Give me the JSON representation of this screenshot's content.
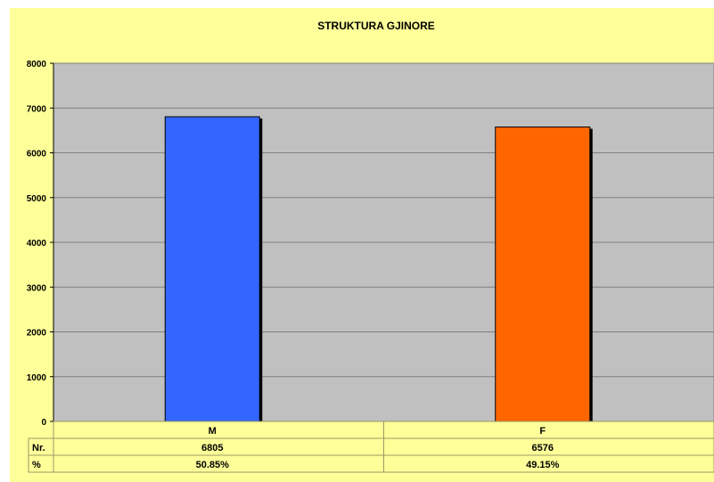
{
  "chart_data": {
    "type": "bar",
    "title": "STRUKTURA GJINORE",
    "categories": [
      "M",
      "F"
    ],
    "values": [
      6805,
      6576
    ],
    "colors": [
      "#3366ff",
      "#ff6600"
    ],
    "ylim": [
      0,
      8000
    ],
    "yticks": [
      0,
      1000,
      2000,
      3000,
      4000,
      5000,
      6000,
      7000,
      8000
    ],
    "grid": true,
    "plot_background": "#c0c0c0",
    "chart_background": "#ffff99",
    "data_table": {
      "rows": [
        {
          "label": "Nr.",
          "values": [
            "6805",
            "6576"
          ]
        },
        {
          "label": "%",
          "values": [
            "50.85%",
            "49.15%"
          ]
        }
      ]
    }
  }
}
